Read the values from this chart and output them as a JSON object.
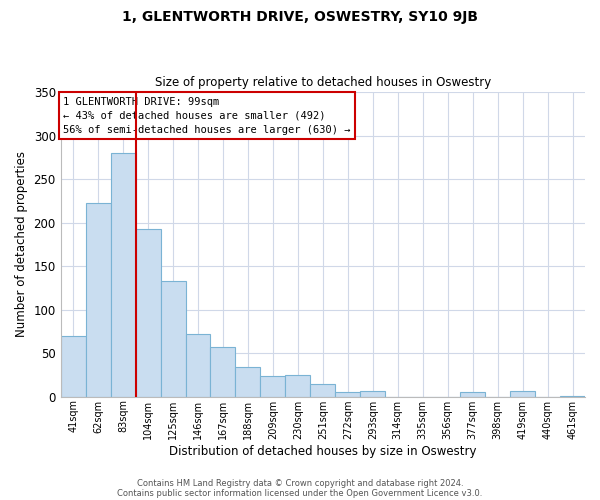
{
  "title": "1, GLENTWORTH DRIVE, OSWESTRY, SY10 9JB",
  "subtitle": "Size of property relative to detached houses in Oswestry",
  "xlabel": "Distribution of detached houses by size in Oswestry",
  "ylabel": "Number of detached properties",
  "categories": [
    "41sqm",
    "62sqm",
    "83sqm",
    "104sqm",
    "125sqm",
    "146sqm",
    "167sqm",
    "188sqm",
    "209sqm",
    "230sqm",
    "251sqm",
    "272sqm",
    "293sqm",
    "314sqm",
    "335sqm",
    "356sqm",
    "377sqm",
    "398sqm",
    "419sqm",
    "440sqm",
    "461sqm"
  ],
  "values": [
    70,
    223,
    280,
    193,
    133,
    72,
    57,
    34,
    24,
    25,
    15,
    5,
    6,
    0,
    0,
    0,
    5,
    0,
    6,
    0,
    1
  ],
  "bar_color": "#c9ddf0",
  "bar_edge_color": "#7ab3d4",
  "vline_index": 2.5,
  "vline_color": "#cc0000",
  "annotation_title": "1 GLENTWORTH DRIVE: 99sqm",
  "annotation_line1": "← 43% of detached houses are smaller (492)",
  "annotation_line2": "56% of semi-detached houses are larger (630) →",
  "annotation_box_color": "#ffffff",
  "annotation_box_edge": "#cc0000",
  "ylim": [
    0,
    350
  ],
  "yticks": [
    0,
    50,
    100,
    150,
    200,
    250,
    300,
    350
  ],
  "footer1": "Contains HM Land Registry data © Crown copyright and database right 2024.",
  "footer2": "Contains public sector information licensed under the Open Government Licence v3.0.",
  "bg_color": "#ffffff",
  "grid_color": "#d0d8e8"
}
